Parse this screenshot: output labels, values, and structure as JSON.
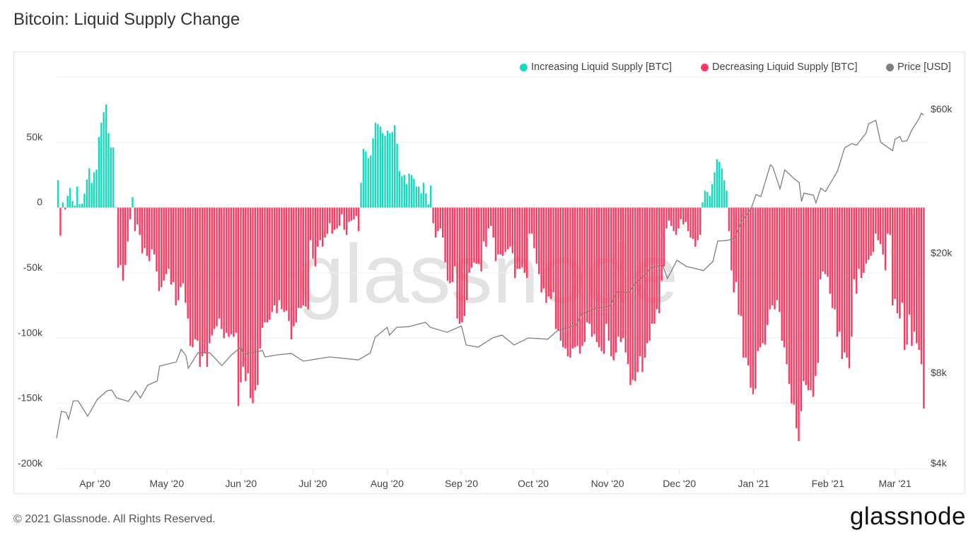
{
  "title": "Bitcoin: Liquid Supply Change",
  "footer": {
    "copyright": "© 2021 Glassnode. All Rights Reserved.",
    "logo": "glassnode"
  },
  "watermark": "glassnode",
  "colors": {
    "increasing": "#14d9bf",
    "decreasing": "#ff3860",
    "price": "#7f7f7f",
    "grid": "#efefef"
  },
  "legend": [
    {
      "label": "Increasing Liquid Supply [BTC]",
      "color": "#14d9bf"
    },
    {
      "label": "Decreasing Liquid Supply [BTC]",
      "color": "#ff3860"
    },
    {
      "label": "Price [USD]",
      "color": "#7f7f7f"
    }
  ],
  "chart_data": {
    "type": "bar",
    "title": "Bitcoin: Liquid Supply Change",
    "legend_placement": "top-right",
    "grid": true,
    "xlim": [
      "2020-03-16",
      "2021-03-15"
    ],
    "x_ticks": [
      {
        "date": "2020-04-01",
        "label": "Apr '20"
      },
      {
        "date": "2020-05-01",
        "label": "May '20"
      },
      {
        "date": "2020-06-01",
        "label": "Jun '20"
      },
      {
        "date": "2020-07-01",
        "label": "Jul '20"
      },
      {
        "date": "2020-08-01",
        "label": "Aug '20"
      },
      {
        "date": "2020-09-01",
        "label": "Sep '20"
      },
      {
        "date": "2020-10-01",
        "label": "Oct '20"
      },
      {
        "date": "2020-11-01",
        "label": "Nov '20"
      },
      {
        "date": "2020-12-01",
        "label": "Dec '20"
      },
      {
        "date": "2021-01-01",
        "label": "Jan '21"
      },
      {
        "date": "2021-02-01",
        "label": "Feb '21"
      },
      {
        "date": "2021-03-01",
        "label": "Mar '21"
      }
    ],
    "y_left": {
      "ylim": [
        -200000,
        100000
      ],
      "ticks": [
        {
          "value": 50000,
          "label": "50k"
        },
        {
          "value": 0,
          "label": "0"
        },
        {
          "value": -50000,
          "label": "-50k"
        },
        {
          "value": -100000,
          "label": "-100k"
        },
        {
          "value": -150000,
          "label": "-150k"
        },
        {
          "value": -200000,
          "label": "-200k"
        }
      ]
    },
    "y_right": {
      "scale": "log",
      "ylim": [
        4000,
        80000
      ],
      "ticks": [
        {
          "value": 60000,
          "label": "$60k"
        },
        {
          "value": 20000,
          "label": "$20k"
        },
        {
          "value": 8000,
          "label": "$8k"
        },
        {
          "value": 4000,
          "label": "$4k"
        }
      ]
    },
    "bars_frequency": "daily",
    "bars_btc": [
      21000,
      -21500,
      4000,
      -1500,
      9000,
      15000,
      5000,
      1500,
      16000,
      2500,
      3000,
      10600,
      21500,
      30000,
      19000,
      27000,
      29000,
      54000,
      65000,
      73000,
      79000,
      57000,
      46000,
      46000,
      500,
      -46000,
      -44000,
      -56000,
      -44000,
      -26000,
      -9000,
      8000,
      -18000,
      -13000,
      -21000,
      -35000,
      -31000,
      -37000,
      -41000,
      -32000,
      -36000,
      -49000,
      -64000,
      -61000,
      -56000,
      -51000,
      -47000,
      -59000,
      -57000,
      -75000,
      -71000,
      -61000,
      -58000,
      -73000,
      -85000,
      -106000,
      -107000,
      -101000,
      -102000,
      -122000,
      -114000,
      -111000,
      -122000,
      -104000,
      -98000,
      -93000,
      -91000,
      -85000,
      -93000,
      -100000,
      -96000,
      -99000,
      -97000,
      -99000,
      -96000,
      -152000,
      -134000,
      -122000,
      -133000,
      -127000,
      -146000,
      -150000,
      -140000,
      -136000,
      -108000,
      -92000,
      -88000,
      -88000,
      -86000,
      -80000,
      -75000,
      -81000,
      -71000,
      -78000,
      -80000,
      -79000,
      -87000,
      -101000,
      -91000,
      -88000,
      -77000,
      -77000,
      -75000,
      -76000,
      -78000,
      -25000,
      -39000,
      -45000,
      -30000,
      -25000,
      -30000,
      -23000,
      -20000,
      -12000,
      -20000,
      -17000,
      -16000,
      -14000,
      -5000,
      -17000,
      -21000,
      -11000,
      -10000,
      -9000,
      -6500,
      -18000,
      19000,
      45000,
      43000,
      38000,
      40000,
      53000,
      65000,
      64000,
      62000,
      57000,
      55000,
      59000,
      57000,
      58000,
      63000,
      49000,
      28000,
      24000,
      25000,
      18000,
      26000,
      25000,
      22000,
      16000,
      16000,
      11000,
      19000,
      11000,
      2500,
      17000,
      -12000,
      -23000,
      -18000,
      -16000,
      -23000,
      -42000,
      -56000,
      -58000,
      -57000,
      -45000,
      -85000,
      -89000,
      -88000,
      -83000,
      -71000,
      -50000,
      -46000,
      -42000,
      -43000,
      -43000,
      -49000,
      -26000,
      -30000,
      -16000,
      -14000,
      -23000,
      -41000,
      -36000,
      -36000,
      -37000,
      -34000,
      -32000,
      -30000,
      -35000,
      -54000,
      -47000,
      -47000,
      -46000,
      -50000,
      -54000,
      -20000,
      -20000,
      -31000,
      -43000,
      -51000,
      -65000,
      -62000,
      -73000,
      -68000,
      -70000,
      -65000,
      -93000,
      -94000,
      -102000,
      -107000,
      -108000,
      -114000,
      -115000,
      -108000,
      -107000,
      -106000,
      -112000,
      -106000,
      -103000,
      -88000,
      -89000,
      -99000,
      -97000,
      -103000,
      -107000,
      -110000,
      -112000,
      -89000,
      -102000,
      -114000,
      -117000,
      -111000,
      -99000,
      -103000,
      -100000,
      -111000,
      -120000,
      -136000,
      -132000,
      -133000,
      -126000,
      -114000,
      -126000,
      -115000,
      -104000,
      -102000,
      -89000,
      -89000,
      -78000,
      -81000,
      -56000,
      -45000,
      -16000,
      -10000,
      -14000,
      -18000,
      -21000,
      -16000,
      -9000,
      -13000,
      -11000,
      -18000,
      -23000,
      -24000,
      -30000,
      -25000,
      -21000,
      4000,
      13000,
      12000,
      9000,
      18000,
      27000,
      37000,
      35000,
      30000,
      21000,
      13000,
      -18000,
      -48000,
      -65000,
      -57000,
      -82000,
      -83000,
      -115000,
      -115000,
      -121000,
      -138000,
      -143000,
      -139000,
      -110000,
      -107000,
      -104000,
      -105000,
      -90000,
      -78000,
      -75000,
      -78000,
      -71000,
      -80000,
      -102000,
      -107000,
      -120000,
      -135000,
      -150000,
      -151000,
      -169000,
      -179000,
      -156000,
      -133000,
      -136000,
      -140000,
      -140000,
      -145000,
      -129000,
      -119000,
      -55000,
      -49000,
      -51000,
      -53000,
      -66000,
      -77000,
      -78000,
      -99000,
      -95000,
      -116000,
      -111000,
      -115000,
      -123000,
      -99000,
      -55000,
      -66000,
      -47000,
      -54000,
      -50000,
      -43000,
      -40000,
      -37000,
      -34000,
      -20000,
      -25000,
      -28000,
      -36000,
      -48000,
      -20000,
      -21000,
      -75000,
      -70000,
      -81000,
      -85000,
      -73000,
      -109000,
      -105000,
      -82000,
      -106000,
      -95000,
      -104000,
      -109000,
      -120000,
      -154000
    ],
    "series": [
      {
        "name": "Increasing Liquid Supply [BTC]",
        "rule": "bars_btc > 0"
      },
      {
        "name": "Decreasing Liquid Supply [BTC]",
        "rule": "bars_btc < 0"
      },
      {
        "name": "Price [USD]",
        "axis": "right",
        "type": "line",
        "points": [
          [
            "2020-03-16",
            5050
          ],
          [
            "2020-03-18",
            6200
          ],
          [
            "2020-03-20",
            6150
          ],
          [
            "2020-03-21",
            5840
          ],
          [
            "2020-03-23",
            6720
          ],
          [
            "2020-03-25",
            6720
          ],
          [
            "2020-03-29",
            5970
          ],
          [
            "2020-04-02",
            6790
          ],
          [
            "2020-04-06",
            7250
          ],
          [
            "2020-04-08",
            7300
          ],
          [
            "2020-04-10",
            6870
          ],
          [
            "2020-04-15",
            6690
          ],
          [
            "2020-04-18",
            7250
          ],
          [
            "2020-04-20",
            6870
          ],
          [
            "2020-04-23",
            7570
          ],
          [
            "2020-04-27",
            7820
          ],
          [
            "2020-04-28",
            8760
          ],
          [
            "2020-05-05",
            9050
          ],
          [
            "2020-05-07",
            9970
          ],
          [
            "2020-05-09",
            9500
          ],
          [
            "2020-05-10",
            8620
          ],
          [
            "2020-05-14",
            9700
          ],
          [
            "2020-05-19",
            9700
          ],
          [
            "2020-05-24",
            8800
          ],
          [
            "2020-05-28",
            9550
          ],
          [
            "2020-06-01",
            10130
          ],
          [
            "2020-06-02",
            9600
          ],
          [
            "2020-06-10",
            9870
          ],
          [
            "2020-06-11",
            9400
          ],
          [
            "2020-06-16",
            9550
          ],
          [
            "2020-06-22",
            9650
          ],
          [
            "2020-06-27",
            9100
          ],
          [
            "2020-07-08",
            9400
          ],
          [
            "2020-07-20",
            9190
          ],
          [
            "2020-07-25",
            9700
          ],
          [
            "2020-07-27",
            10930
          ],
          [
            "2020-08-01",
            11790
          ],
          [
            "2020-08-02",
            11110
          ],
          [
            "2020-08-05",
            11790
          ],
          [
            "2020-08-10",
            11850
          ],
          [
            "2020-08-17",
            12250
          ],
          [
            "2020-08-19",
            11790
          ],
          [
            "2020-08-26",
            11350
          ],
          [
            "2020-09-01",
            11920
          ],
          [
            "2020-09-03",
            10300
          ],
          [
            "2020-09-08",
            10130
          ],
          [
            "2020-09-14",
            10870
          ],
          [
            "2020-09-18",
            11110
          ],
          [
            "2020-09-23",
            10300
          ],
          [
            "2020-09-29",
            10870
          ],
          [
            "2020-10-07",
            10760
          ],
          [
            "2020-10-11",
            11480
          ],
          [
            "2020-10-19",
            11990
          ],
          [
            "2020-10-21",
            13000
          ],
          [
            "2020-10-27",
            13650
          ],
          [
            "2020-11-02",
            13870
          ],
          [
            "2020-11-05",
            15450
          ],
          [
            "2020-11-10",
            15380
          ],
          [
            "2020-11-12",
            16310
          ],
          [
            "2020-11-17",
            17780
          ],
          [
            "2020-11-19",
            18570
          ],
          [
            "2020-11-24",
            18980
          ],
          [
            "2020-11-26",
            17120
          ],
          [
            "2020-11-30",
            19710
          ],
          [
            "2020-12-04",
            18770
          ],
          [
            "2020-12-08",
            18470
          ],
          [
            "2020-12-11",
            18180
          ],
          [
            "2020-12-15",
            19500
          ],
          [
            "2020-12-17",
            22810
          ],
          [
            "2020-12-21",
            22920
          ],
          [
            "2020-12-24",
            23300
          ],
          [
            "2020-12-27",
            26530
          ],
          [
            "2020-12-31",
            29230
          ],
          [
            "2021-01-02",
            32560
          ],
          [
            "2021-01-04",
            32040
          ],
          [
            "2021-01-08",
            40870
          ],
          [
            "2021-01-09",
            40210
          ],
          [
            "2021-01-12",
            34000
          ],
          [
            "2021-01-14",
            39350
          ],
          [
            "2021-01-18",
            36700
          ],
          [
            "2021-01-20",
            35700
          ],
          [
            "2021-01-21",
            30850
          ],
          [
            "2021-01-22",
            32930
          ],
          [
            "2021-01-26",
            32400
          ],
          [
            "2021-01-27",
            30500
          ],
          [
            "2021-01-29",
            34200
          ],
          [
            "2021-01-31",
            33300
          ],
          [
            "2021-02-05",
            38950
          ],
          [
            "2021-02-08",
            46540
          ],
          [
            "2021-02-11",
            48060
          ],
          [
            "2021-02-13",
            47500
          ],
          [
            "2021-02-17",
            52150
          ],
          [
            "2021-02-18",
            55920
          ],
          [
            "2021-02-21",
            57460
          ],
          [
            "2021-02-23",
            48580
          ],
          [
            "2021-02-28",
            45540
          ],
          [
            "2021-03-01",
            49670
          ],
          [
            "2021-03-03",
            50780
          ],
          [
            "2021-03-04",
            48870
          ],
          [
            "2021-03-06",
            49100
          ],
          [
            "2021-03-08",
            53290
          ],
          [
            "2021-03-11",
            58110
          ],
          [
            "2021-03-12",
            60650
          ],
          [
            "2021-03-13",
            59800
          ]
        ]
      }
    ]
  }
}
